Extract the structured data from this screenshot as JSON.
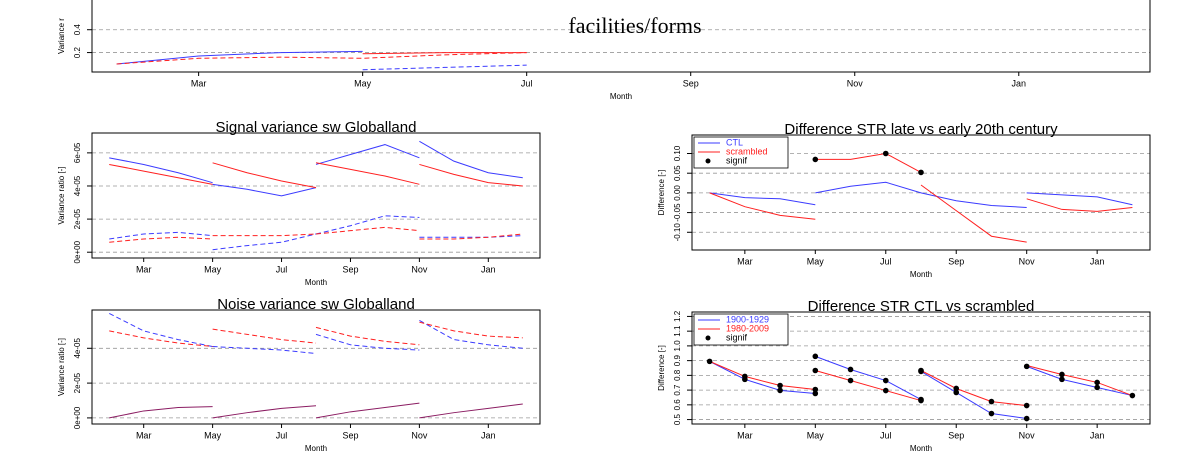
{
  "chart_data": [
    {
      "type": "line",
      "annotation": "facilities/forms",
      "xlabel": "Month",
      "ylabel": "Variance r",
      "xlim": [
        1.7,
        14.6
      ],
      "xticks": [
        {
          "value": 3,
          "label": "Mar"
        },
        {
          "value": 5,
          "label": "May"
        },
        {
          "value": 7,
          "label": "Jul"
        },
        {
          "value": 9,
          "label": "Sep"
        },
        {
          "value": 11,
          "label": "Nov"
        },
        {
          "value": 13,
          "label": "Jan"
        }
      ],
      "ylim": [
        0.03,
        0.66
      ],
      "yticks": [
        0.2,
        0.4
      ],
      "grid": true,
      "series": [
        {
          "color": "#3b3bff",
          "dash": false,
          "x": [
            2,
            3,
            4,
            5
          ],
          "values": [
            0.1,
            0.17,
            0.2,
            0.21
          ]
        },
        {
          "color": "#3b3bff",
          "dash": true,
          "x": [
            5,
            6,
            7
          ],
          "values": [
            0.05,
            0.07,
            0.09
          ]
        },
        {
          "color": "#ff2020",
          "dash": true,
          "x": [
            2,
            3,
            4,
            5,
            6,
            7
          ],
          "values": [
            0.1,
            0.15,
            0.16,
            0.15,
            0.18,
            0.2
          ]
        },
        {
          "color": "#ff2020",
          "dash": false,
          "x": [
            5,
            6,
            7
          ],
          "values": [
            0.19,
            0.2,
            0.2
          ]
        }
      ]
    },
    {
      "type": "line",
      "title": "Signal variance sw Globalland",
      "xlabel": "Month",
      "ylabel": "Variance ratio [-]",
      "xlim": [
        1.5,
        14.5
      ],
      "xticks": [
        {
          "value": 3,
          "label": "Mar"
        },
        {
          "value": 5,
          "label": "May"
        },
        {
          "value": 7,
          "label": "Jul"
        },
        {
          "value": 9,
          "label": "Sep"
        },
        {
          "value": 11,
          "label": "Nov"
        },
        {
          "value": 13,
          "label": "Jan"
        }
      ],
      "ylim": [
        -3.5e-06,
        7.2e-05
      ],
      "yticks": [
        {
          "value": 0,
          "label": "0e+00"
        },
        {
          "value": 2e-05,
          "label": "2e-05"
        },
        {
          "value": 4e-05,
          "label": "4e-05"
        },
        {
          "value": 6e-05,
          "label": "6e-05"
        }
      ],
      "grid": true,
      "series": [
        {
          "color": "#3b3bff",
          "dash": false,
          "x": [
            2,
            3,
            4,
            5,
            null,
            5,
            6,
            7,
            8,
            null,
            8,
            9,
            10,
            11,
            null,
            11,
            12,
            13,
            14
          ],
          "values": [
            5.7e-05,
            5.3e-05,
            4.8e-05,
            4.2e-05,
            null,
            4.1e-05,
            3.8e-05,
            3.4e-05,
            3.9e-05,
            null,
            5.3e-05,
            5.9e-05,
            6.5e-05,
            5.7e-05,
            null,
            6.7e-05,
            5.5e-05,
            4.8e-05,
            4.5e-05
          ]
        },
        {
          "color": "#ff2020",
          "dash": false,
          "x": [
            2,
            3,
            4,
            5,
            null,
            5,
            6,
            7,
            8,
            null,
            8,
            9,
            10,
            11,
            null,
            11,
            12,
            13,
            14
          ],
          "values": [
            5.3e-05,
            4.9e-05,
            4.5e-05,
            4.1e-05,
            null,
            5.4e-05,
            4.8e-05,
            4.3e-05,
            3.9e-05,
            null,
            5.4e-05,
            5e-05,
            4.6e-05,
            4.1e-05,
            null,
            5.3e-05,
            4.7e-05,
            4.2e-05,
            4e-05
          ]
        },
        {
          "color": "#3b3bff",
          "dash": true,
          "x": [
            2,
            3,
            4,
            5,
            null,
            5,
            6,
            7,
            8,
            null,
            8,
            9,
            10,
            11,
            null,
            11,
            12,
            13,
            14
          ],
          "values": [
            8e-06,
            1.1e-05,
            1.2e-05,
            1e-05,
            null,
            1.5e-06,
            4e-06,
            6e-06,
            1.1e-05,
            null,
            1.1e-05,
            1.6e-05,
            2.2e-05,
            2.1e-05,
            null,
            9e-06,
            9e-06,
            9e-06,
            1e-05
          ]
        },
        {
          "color": "#ff2020",
          "dash": true,
          "x": [
            2,
            3,
            4,
            5,
            null,
            5,
            6,
            7,
            8,
            null,
            8,
            9,
            10,
            11,
            null,
            11,
            12,
            13,
            14
          ],
          "values": [
            6e-06,
            8e-06,
            9e-06,
            8e-06,
            null,
            1e-05,
            1e-05,
            1e-05,
            1.1e-05,
            null,
            1.1e-05,
            1.3e-05,
            1.5e-05,
            1.3e-05,
            null,
            8e-06,
            8e-06,
            9e-06,
            1.1e-05
          ]
        }
      ]
    },
    {
      "type": "line",
      "title": "Noise variance sw Globalland",
      "xlabel": "Month",
      "ylabel": "Variance ratio [-]",
      "xlim": [
        1.5,
        14.5
      ],
      "xticks": [
        {
          "value": 3,
          "label": "Mar"
        },
        {
          "value": 5,
          "label": "May"
        },
        {
          "value": 7,
          "label": "Jul"
        },
        {
          "value": 9,
          "label": "Sep"
        },
        {
          "value": 11,
          "label": "Nov"
        },
        {
          "value": 13,
          "label": "Jan"
        }
      ],
      "ylim": [
        -3.5e-06,
        6.2e-05
      ],
      "yticks": [
        {
          "value": 0,
          "label": "0e+00"
        },
        {
          "value": 2e-05,
          "label": "2e-05"
        },
        {
          "value": 4e-05,
          "label": "4e-05"
        }
      ],
      "grid": true,
      "series": [
        {
          "color": "#3b3bff",
          "dash": true,
          "x": [
            2,
            3,
            4,
            5,
            null,
            5,
            6,
            7,
            8,
            null,
            8,
            9,
            10,
            11,
            null,
            11,
            12,
            13,
            14
          ],
          "values": [
            6e-05,
            5e-05,
            4.5e-05,
            4.1e-05,
            null,
            4.1e-05,
            4e-05,
            3.9e-05,
            3.7e-05,
            null,
            4.8e-05,
            4.2e-05,
            4e-05,
            3.9e-05,
            null,
            5.6e-05,
            4.5e-05,
            4.2e-05,
            4e-05
          ]
        },
        {
          "color": "#ff2020",
          "dash": true,
          "x": [
            2,
            3,
            4,
            5,
            null,
            5,
            6,
            7,
            8,
            null,
            8,
            9,
            10,
            11,
            null,
            11,
            12,
            13,
            14
          ],
          "values": [
            5e-05,
            4.6e-05,
            4.3e-05,
            4.1e-05,
            null,
            5.1e-05,
            4.8e-05,
            4.5e-05,
            4.3e-05,
            null,
            5.2e-05,
            4.7e-05,
            4.4e-05,
            4.2e-05,
            null,
            5.5e-05,
            5e-05,
            4.7e-05,
            4.6e-05
          ]
        },
        {
          "color": "#8b1c62",
          "dash": false,
          "x": [
            2,
            3,
            4,
            5,
            null,
            5,
            6,
            7,
            8,
            null,
            8,
            9,
            10,
            11,
            null,
            11,
            12,
            13,
            14
          ],
          "values": [
            0,
            4e-06,
            6e-06,
            6.5e-06,
            null,
            0,
            3e-06,
            5.5e-06,
            7e-06,
            null,
            0,
            3.5e-06,
            6e-06,
            8.5e-06,
            null,
            0,
            3e-06,
            5.5e-06,
            8e-06
          ]
        }
      ]
    },
    {
      "type": "line",
      "title": "Difference STR late vs early 20th century",
      "xlabel": "Month",
      "ylabel": "Difference [-]",
      "xlim": [
        1.5,
        14.5
      ],
      "xticks": [
        {
          "value": 3,
          "label": "Mar"
        },
        {
          "value": 5,
          "label": "May"
        },
        {
          "value": 7,
          "label": "Jul"
        },
        {
          "value": 9,
          "label": "Sep"
        },
        {
          "value": 11,
          "label": "Nov"
        },
        {
          "value": 13,
          "label": "Jan"
        }
      ],
      "ylim": [
        -0.145,
        0.147
      ],
      "yticks": [
        {
          "value": -0.1,
          "label": "-0.10"
        },
        -0.05,
        {
          "value": 0,
          "label": "0.00"
        },
        0.05,
        {
          "value": 0.1,
          "label": "0.10"
        }
      ],
      "grid": true,
      "legend": "top-left",
      "series": [
        {
          "name": "CTL",
          "color": "#3b3bff",
          "dash": false,
          "x": [
            2,
            3,
            4,
            5,
            null,
            5,
            6,
            7,
            8,
            null,
            8,
            9,
            10,
            11,
            null,
            11,
            12,
            13,
            14
          ],
          "values": [
            0,
            -0.012,
            -0.015,
            -0.03,
            null,
            0,
            0.017,
            0.027,
            0,
            null,
            0,
            -0.02,
            -0.032,
            -0.037,
            null,
            0,
            -0.005,
            -0.01,
            -0.03
          ]
        },
        {
          "name": "scrambled",
          "color": "#ff2020",
          "dash": false,
          "x": [
            2,
            3,
            4,
            5,
            null,
            5,
            6,
            7,
            8,
            null,
            8,
            9,
            10,
            11,
            null,
            11,
            12,
            13,
            14
          ],
          "values": [
            0,
            -0.035,
            -0.057,
            -0.067,
            null,
            0.085,
            0.085,
            0.1,
            0.052,
            null,
            0.02,
            -0.045,
            -0.11,
            -0.125,
            null,
            -0.015,
            -0.042,
            -0.047,
            -0.037
          ]
        },
        {
          "name": "signif",
          "color": "#000000",
          "mode": "markers",
          "x": [
            5,
            7,
            8
          ],
          "values": [
            0.085,
            0.1,
            0.052
          ]
        }
      ]
    },
    {
      "type": "line",
      "title": "Difference STR CTL vs scrambled",
      "xlabel": "Month",
      "ylabel": "Difference [-]",
      "xlim": [
        1.5,
        14.5
      ],
      "xticks": [
        {
          "value": 3,
          "label": "Mar"
        },
        {
          "value": 5,
          "label": "May"
        },
        {
          "value": 7,
          "label": "Jul"
        },
        {
          "value": 9,
          "label": "Sep"
        },
        {
          "value": 11,
          "label": "Nov"
        },
        {
          "value": 13,
          "label": "Jan"
        }
      ],
      "ylim": [
        0.47,
        1.23
      ],
      "yticks": [
        0.5,
        0.6,
        0.7,
        0.8,
        0.9,
        {
          "value": 1,
          "label": "1.0"
        },
        1.1,
        1.2
      ],
      "grid": true,
      "legend": "top-left",
      "series": [
        {
          "name": "1900-1929",
          "color": "#3b3bff",
          "dash": false,
          "x": [
            2,
            3,
            4,
            5,
            null,
            5,
            6,
            7,
            8,
            null,
            8,
            9,
            10,
            11,
            null,
            11,
            12,
            13,
            14
          ],
          "values": [
            0.895,
            0.773,
            0.698,
            0.677,
            null,
            0.929,
            0.84,
            0.765,
            0.636,
            null,
            0.827,
            0.684,
            0.541,
            0.507,
            null,
            0.861,
            0.773,
            0.718,
            0.663
          ]
        },
        {
          "name": "1980-2009",
          "color": "#ff2020",
          "dash": false,
          "x": [
            2,
            3,
            4,
            5,
            null,
            5,
            6,
            7,
            8,
            null,
            8,
            9,
            10,
            11,
            null,
            11,
            12,
            13,
            14
          ],
          "values": [
            0.895,
            0.793,
            0.731,
            0.704,
            null,
            0.833,
            0.765,
            0.697,
            0.629,
            null,
            0.833,
            0.711,
            0.622,
            0.595,
            null,
            0.867,
            0.806,
            0.752,
            0.663
          ]
        },
        {
          "name": "signif",
          "color": "#000000",
          "mode": "markers",
          "x": [
            2,
            3,
            4,
            5,
            5,
            6,
            7,
            8,
            8,
            9,
            10,
            11,
            11,
            12,
            13,
            14,
            3,
            4,
            5,
            5,
            6,
            7,
            8,
            8,
            9,
            10,
            11,
            12,
            13
          ],
          "values": [
            0.895,
            0.773,
            0.698,
            0.677,
            0.929,
            0.84,
            0.765,
            0.636,
            0.827,
            0.684,
            0.541,
            0.507,
            0.861,
            0.773,
            0.718,
            0.663,
            0.793,
            0.731,
            0.704,
            0.833,
            0.765,
            0.697,
            0.629,
            0.833,
            0.711,
            0.622,
            0.595,
            0.806,
            0.752
          ]
        }
      ]
    }
  ]
}
